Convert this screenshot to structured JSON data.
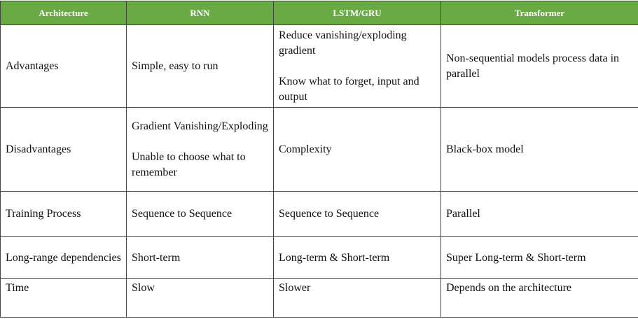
{
  "colors": {
    "header_bg": "#6aaa45",
    "header_text": "#ffffff",
    "border": "#444444"
  },
  "headers": [
    "Architecture",
    "RNN",
    "LSTM/GRU",
    "Transformer"
  ],
  "rows": [
    {
      "label": "Advantages",
      "rnn": [
        "Simple, easy to run"
      ],
      "lstm": [
        "Reduce vanishing/exploding gradient",
        "Know what to forget, input and output"
      ],
      "transformer": [
        "Non-sequential models process data in parallel"
      ]
    },
    {
      "label": "Disadvantages",
      "rnn": [
        "Gradient Vanishing/Exploding",
        "Unable to choose what to remember"
      ],
      "lstm": [
        "Complexity"
      ],
      "transformer": [
        "Black-box model"
      ]
    },
    {
      "label": "Training Process",
      "rnn": [
        "Sequence to Sequence"
      ],
      "lstm": [
        "Sequence to Sequence"
      ],
      "transformer": [
        "Parallel"
      ]
    },
    {
      "label": "Long-range dependencies",
      "rnn": [
        "Short-term"
      ],
      "lstm": [
        "Long-term & Short-term"
      ],
      "transformer": [
        "Super Long-term & Short-term"
      ]
    },
    {
      "label": "Time",
      "rnn": [
        "Slow"
      ],
      "lstm": [
        "Slower"
      ],
      "transformer": [
        "Depends on the architecture"
      ]
    }
  ]
}
